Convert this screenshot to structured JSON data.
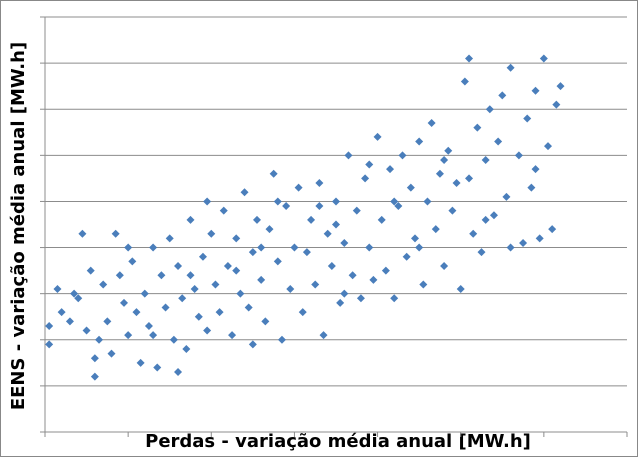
{
  "chart_data": {
    "type": "scatter",
    "x_label": "Perdas - variação média anual [MW.h]",
    "y_label": "EENS - variação média anual [MW.h]",
    "xlim": [
      0,
      7
    ],
    "ylim": [
      0,
      9
    ],
    "xticks": [
      0,
      1,
      2,
      3,
      4,
      5,
      6,
      7
    ],
    "yticks": [
      0,
      1,
      2,
      3,
      4,
      5,
      6,
      7,
      8,
      9
    ],
    "grid": true,
    "series": [
      {
        "name": "EENS",
        "color": "#4a7ebb",
        "x": [
          0.05,
          0.05,
          0.15,
          0.2,
          0.3,
          0.4,
          0.45,
          0.55,
          0.6,
          0.6,
          0.65,
          0.7,
          0.75,
          0.8,
          0.85,
          0.9,
          0.95,
          1.0,
          1.0,
          0.35,
          0.5,
          1.05,
          1.1,
          1.15,
          1.2,
          1.25,
          1.3,
          1.35,
          1.4,
          1.45,
          1.5,
          1.55,
          1.6,
          1.65,
          1.7,
          1.75,
          1.8,
          1.85,
          1.9,
          1.95,
          2.0,
          1.3,
          1.6,
          1.75,
          1.95,
          2.05,
          2.1,
          2.15,
          2.2,
          2.25,
          2.3,
          2.35,
          2.4,
          2.45,
          2.5,
          2.55,
          2.6,
          2.65,
          2.7,
          2.75,
          2.8,
          2.85,
          2.9,
          2.95,
          3.0,
          2.3,
          2.6,
          2.8,
          2.5,
          3.05,
          3.1,
          3.15,
          3.2,
          3.25,
          3.3,
          3.35,
          3.4,
          3.45,
          3.5,
          3.55,
          3.6,
          3.65,
          3.7,
          3.75,
          3.8,
          3.85,
          3.9,
          3.95,
          4.0,
          3.3,
          3.6,
          3.9,
          3.5,
          4.05,
          4.1,
          4.15,
          4.2,
          4.25,
          4.3,
          4.35,
          4.4,
          4.45,
          4.5,
          4.55,
          4.6,
          4.65,
          4.7,
          4.75,
          4.8,
          4.85,
          4.9,
          4.95,
          5.0,
          4.2,
          4.5,
          4.8,
          5.05,
          5.1,
          5.1,
          5.15,
          5.2,
          5.25,
          5.3,
          5.35,
          5.4,
          5.45,
          5.5,
          5.55,
          5.6,
          5.7,
          5.75,
          5.8,
          5.85,
          5.9,
          5.95,
          6.0,
          6.05,
          6.1,
          6.15,
          6.2,
          5.3,
          5.6,
          5.9
        ],
        "values": [
          1.9,
          2.3,
          3.1,
          2.6,
          2.4,
          2.9,
          4.3,
          3.5,
          1.6,
          1.2,
          2.0,
          3.2,
          2.4,
          1.7,
          4.3,
          3.4,
          2.8,
          2.1,
          4.0,
          3.0,
          2.2,
          3.7,
          2.6,
          1.5,
          3.0,
          2.3,
          4.0,
          1.4,
          3.4,
          2.7,
          4.2,
          2.0,
          3.6,
          2.9,
          1.8,
          4.6,
          3.1,
          2.5,
          3.8,
          2.2,
          4.3,
          2.1,
          1.3,
          3.4,
          5.0,
          3.2,
          2.6,
          4.8,
          3.6,
          2.1,
          4.2,
          3.0,
          5.2,
          2.7,
          3.9,
          4.6,
          3.3,
          2.4,
          4.4,
          5.6,
          3.7,
          2.0,
          4.9,
          3.1,
          4.0,
          3.5,
          4.0,
          5.0,
          1.9,
          5.3,
          2.6,
          3.9,
          4.6,
          3.2,
          5.4,
          2.1,
          4.3,
          3.6,
          5.0,
          2.8,
          4.1,
          6.0,
          3.4,
          4.8,
          2.9,
          5.5,
          4.0,
          3.3,
          6.4,
          4.9,
          3.0,
          5.8,
          4.5,
          4.6,
          3.5,
          5.7,
          2.9,
          4.9,
          6.0,
          3.8,
          5.3,
          4.2,
          6.3,
          3.2,
          5.0,
          6.7,
          4.4,
          5.6,
          3.6,
          6.1,
          4.8,
          5.4,
          3.1,
          5.0,
          4.0,
          5.9,
          7.6,
          8.1,
          5.5,
          4.3,
          6.6,
          3.9,
          5.9,
          7.0,
          4.7,
          6.3,
          7.3,
          5.1,
          7.9,
          6.0,
          4.1,
          6.8,
          5.3,
          7.4,
          4.2,
          8.1,
          6.2,
          4.4,
          7.1,
          7.5,
          4.6,
          4.0,
          5.7
        ]
      }
    ]
  }
}
